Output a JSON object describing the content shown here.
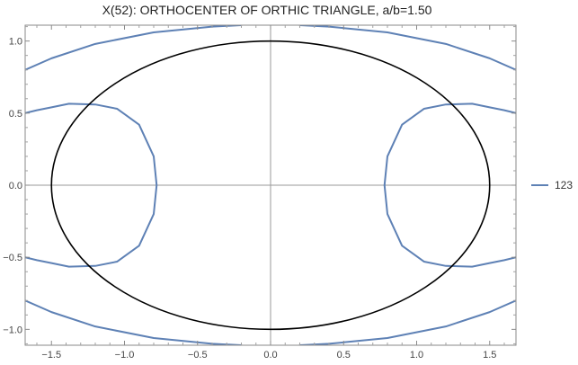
{
  "chart_data": {
    "type": "line",
    "title": "X(52): ORTHOCENTER OF ORTHIC TRIANGLE, a/b=1.50",
    "xlim": [
      -1.68,
      1.68
    ],
    "ylim": [
      -1.11,
      1.11
    ],
    "x_ticks": [
      -1.5,
      -1.0,
      -0.5,
      0.0,
      0.5,
      1.0,
      1.5
    ],
    "x_tick_labels": [
      "−1.5",
      "−1.0",
      "−0.5",
      "0.0",
      "0.5",
      "1.0",
      "1.5"
    ],
    "y_ticks": [
      -1.0,
      -0.5,
      0.0,
      0.5,
      1.0
    ],
    "y_tick_labels": [
      "−1.0",
      "−0.5",
      "0.0",
      "0.5",
      "1.0"
    ],
    "legend_position": "right",
    "series": [
      {
        "name": "123",
        "color": "#5e81b5",
        "segments": [
          [
            [
              -0.78,
              0.0
            ],
            [
              -0.8,
              0.2
            ],
            [
              -0.9,
              0.42
            ],
            [
              -1.05,
              0.53
            ],
            [
              -1.2,
              0.56
            ],
            [
              -1.38,
              0.565
            ],
            [
              -1.5,
              0.54
            ],
            [
              -1.6,
              0.52
            ],
            [
              -1.68,
              0.5
            ]
          ],
          [
            [
              -0.78,
              0.0
            ],
            [
              -0.8,
              -0.2
            ],
            [
              -0.9,
              -0.42
            ],
            [
              -1.05,
              -0.53
            ],
            [
              -1.2,
              -0.56
            ],
            [
              -1.38,
              -0.565
            ],
            [
              -1.5,
              -0.54
            ],
            [
              -1.6,
              -0.52
            ],
            [
              -1.68,
              -0.5
            ]
          ],
          [
            [
              0.78,
              0.0
            ],
            [
              0.8,
              0.2
            ],
            [
              0.9,
              0.42
            ],
            [
              1.05,
              0.53
            ],
            [
              1.2,
              0.56
            ],
            [
              1.38,
              0.565
            ],
            [
              1.5,
              0.54
            ],
            [
              1.6,
              0.52
            ],
            [
              1.68,
              0.5
            ]
          ],
          [
            [
              0.78,
              0.0
            ],
            [
              0.8,
              -0.2
            ],
            [
              0.9,
              -0.42
            ],
            [
              1.05,
              -0.53
            ],
            [
              1.2,
              -0.56
            ],
            [
              1.38,
              -0.565
            ],
            [
              1.5,
              -0.54
            ],
            [
              1.6,
              -0.52
            ],
            [
              1.68,
              -0.5
            ]
          ],
          [
            [
              -1.68,
              0.8
            ],
            [
              -1.5,
              0.88
            ],
            [
              -1.2,
              0.98
            ],
            [
              -0.8,
              1.06
            ],
            [
              -0.4,
              1.1
            ],
            [
              -0.2,
              1.11
            ]
          ],
          [
            [
              0.2,
              1.11
            ],
            [
              0.4,
              1.1
            ],
            [
              0.8,
              1.06
            ],
            [
              1.2,
              0.98
            ],
            [
              1.5,
              0.88
            ],
            [
              1.68,
              0.8
            ]
          ],
          [
            [
              -1.68,
              -0.8
            ],
            [
              -1.5,
              -0.88
            ],
            [
              -1.2,
              -0.98
            ],
            [
              -0.8,
              -1.06
            ],
            [
              -0.4,
              -1.1
            ],
            [
              -0.2,
              -1.11
            ]
          ],
          [
            [
              0.2,
              -1.11
            ],
            [
              0.4,
              -1.1
            ],
            [
              0.8,
              -1.06
            ],
            [
              1.2,
              -0.98
            ],
            [
              1.5,
              -0.88
            ],
            [
              1.68,
              -0.8
            ]
          ]
        ]
      }
    ],
    "ellipse": {
      "a": 1.5,
      "b": 1.0,
      "color": "#000000"
    }
  }
}
